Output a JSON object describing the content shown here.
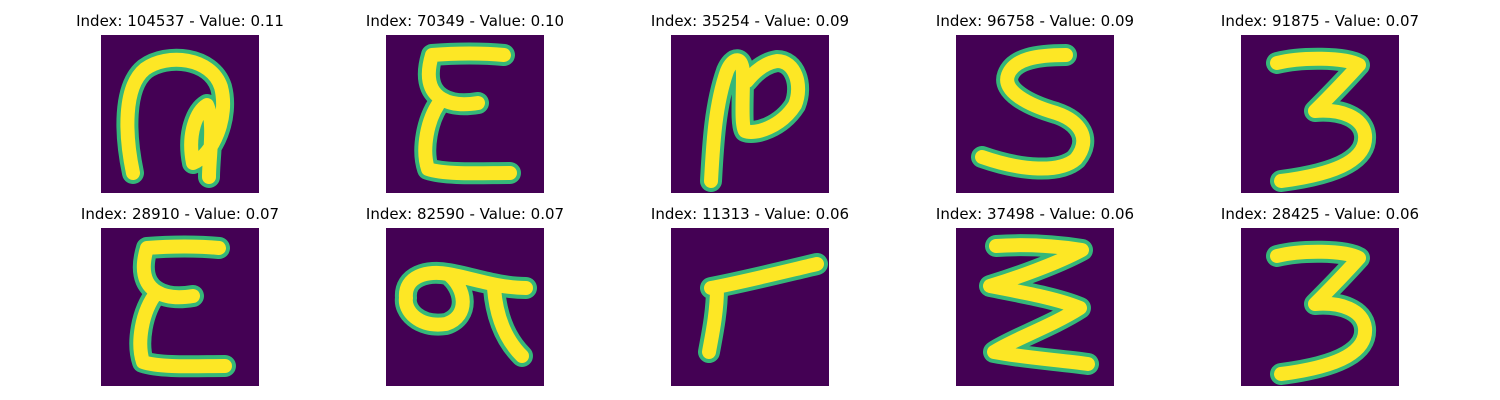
{
  "figure": {
    "background_color": "#440154",
    "stroke_color": "#fde725",
    "edge_color": "#35b779",
    "panels": [
      {
        "title": "Index: 104537 - Value: 0.11",
        "index": 104537,
        "value": 0.11,
        "glyph": "hooked-2"
      },
      {
        "title": "Index: 70349 - Value: 0.10",
        "index": 70349,
        "value": 0.1,
        "glyph": "epsilon-e"
      },
      {
        "title": "Index: 35254 - Value: 0.09",
        "index": 35254,
        "value": 0.09,
        "glyph": "slanted-N"
      },
      {
        "title": "Index: 96758 - Value: 0.09",
        "index": 96758,
        "value": 0.09,
        "glyph": "five-s"
      },
      {
        "title": "Index: 91875 - Value: 0.07",
        "index": 91875,
        "value": 0.07,
        "glyph": "three"
      },
      {
        "title": "Index: 28910 - Value: 0.07",
        "index": 28910,
        "value": 0.07,
        "glyph": "epsilon-e"
      },
      {
        "title": "Index: 82590 - Value: 0.07",
        "index": 82590,
        "value": 0.07,
        "glyph": "loop-q"
      },
      {
        "title": "Index: 11313 - Value: 0.06",
        "index": 11313,
        "value": 0.06,
        "glyph": "seven"
      },
      {
        "title": "Index: 37498 - Value: 0.06",
        "index": 37498,
        "value": 0.06,
        "glyph": "zigzag-3"
      },
      {
        "title": "Index: 28425 - Value: 0.06",
        "index": 28425,
        "value": 0.06,
        "glyph": "three"
      }
    ]
  }
}
